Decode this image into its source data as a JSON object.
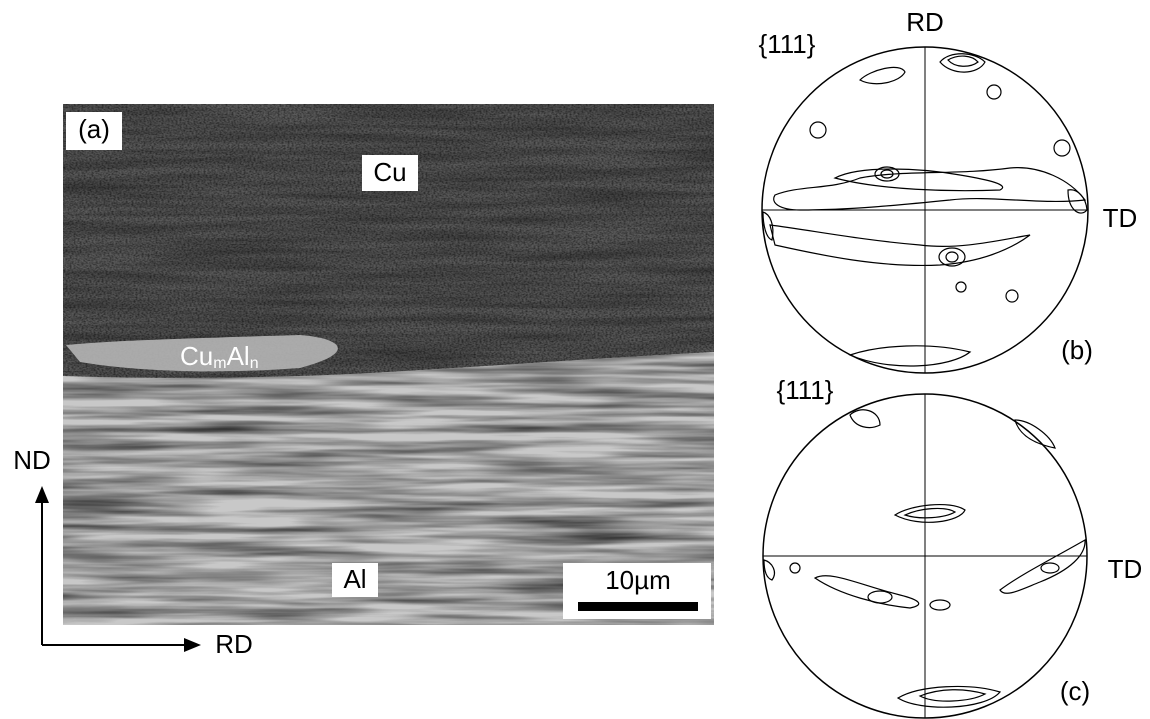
{
  "micrograph": {
    "panel": "(a)",
    "upper_phase": "Cu",
    "interface_phase": [
      "Cu",
      "m",
      "Al",
      "n"
    ],
    "lower_phase": "Al",
    "scale_bar": "10µm"
  },
  "axes": {
    "vertical": "ND",
    "horizontal": "RD"
  },
  "pole_figures": [
    {
      "plane": "{111}",
      "top": "RD",
      "right": "TD",
      "panel": "(b)"
    },
    {
      "plane": "{111}",
      "right": "TD",
      "panel": "(c)"
    }
  ]
}
